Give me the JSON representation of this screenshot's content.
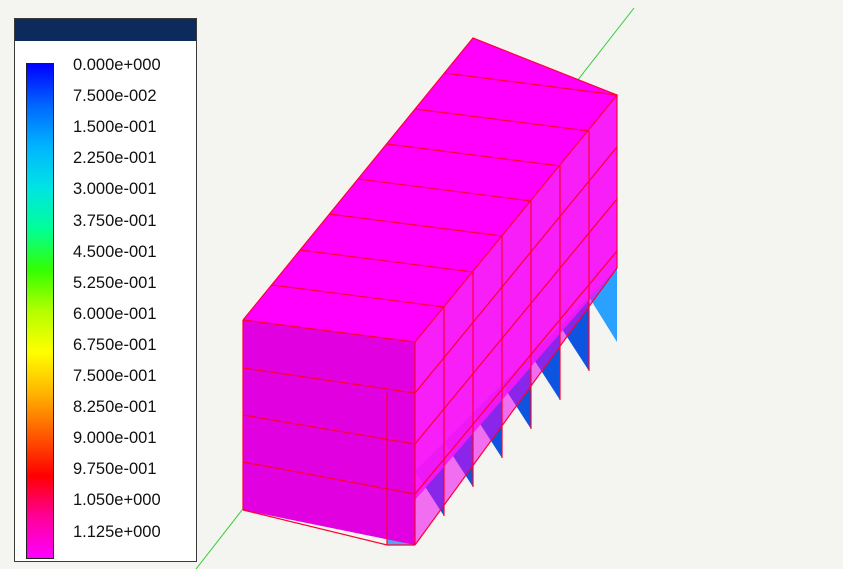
{
  "viewport": {
    "background_color": "#f4f4f0",
    "model_face_color": "#ff00ff",
    "model_side_color": "#e000e0",
    "edge_color": "#ff0033",
    "axis_color": "#33cc33",
    "low_value_cell_color": "#1f5fe8"
  },
  "legend": {
    "title_bar_color": "#0c2a5c",
    "colors": [
      "#0000ff",
      "#0066ff",
      "#00b4ff",
      "#00e4e4",
      "#00ff99",
      "#33ff00",
      "#b4ff00",
      "#ffff00",
      "#ffb400",
      "#ff5a00",
      "#ff0000",
      "#ff0099",
      "#ff00ff"
    ],
    "labels": [
      "0.000e+000",
      "7.500e-002",
      "1.500e-001",
      "2.250e-001",
      "3.000e-001",
      "3.750e-001",
      "4.500e-001",
      "5.250e-001",
      "6.000e-001",
      "6.750e-001",
      "7.500e-001",
      "8.250e-001",
      "9.000e-001",
      "9.750e-001",
      "1.050e+000",
      "1.125e+000"
    ]
  }
}
